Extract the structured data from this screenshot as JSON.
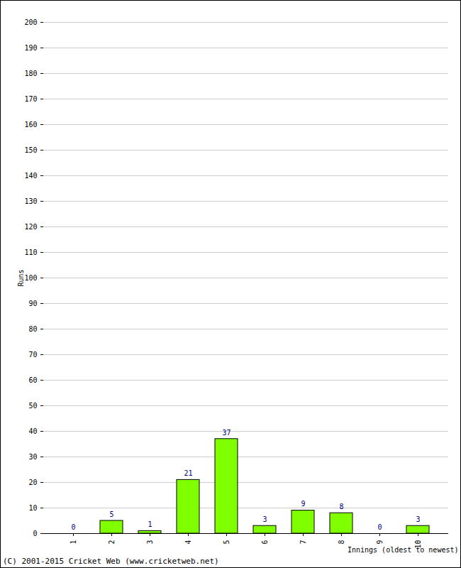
{
  "chart_data": {
    "type": "bar",
    "categories": [
      "1",
      "2",
      "3",
      "4",
      "5",
      "6",
      "7",
      "8",
      "9",
      "10"
    ],
    "values": [
      0,
      5,
      1,
      21,
      37,
      3,
      9,
      8,
      0,
      3
    ],
    "color": "#80ff00",
    "x_label": "Innings (oldest to newest)",
    "y_label": "Runs",
    "ylim": [
      0,
      200
    ],
    "yticks": [
      0,
      10,
      20,
      30,
      40,
      50,
      60,
      70,
      80,
      90,
      100,
      110,
      120,
      130,
      140,
      150,
      160,
      170,
      180,
      190,
      200
    ],
    "grid": true,
    "data_labels": true,
    "annotations": [
      "(C) 2001-2015 Cricket Web (www.cricketweb.net)"
    ]
  }
}
